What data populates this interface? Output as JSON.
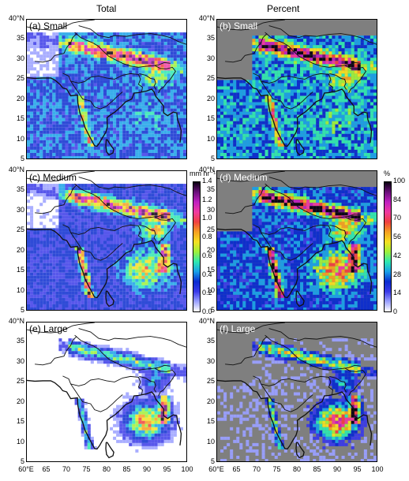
{
  "columns": {
    "total": "Total",
    "percent": "Percent"
  },
  "panels": {
    "a": {
      "label": "(a) Small"
    },
    "b": {
      "label": "(b) Small"
    },
    "c": {
      "label": "(c) Medium"
    },
    "d": {
      "label": "(d) Medium"
    },
    "e": {
      "label": "(e) Large"
    },
    "f": {
      "label": "(f) Large"
    }
  },
  "lat_ticks": [
    "40°N",
    "35",
    "30",
    "25",
    "20",
    "15",
    "10",
    "5"
  ],
  "lon_ticks": [
    "60°E",
    "65",
    "70",
    "75",
    "80",
    "85",
    "90",
    "95",
    "100"
  ],
  "colorbar_total": {
    "unit": "mm hr⁻¹",
    "ticks": [
      "1.4",
      "1.2",
      "1.0",
      "0.8",
      "0.6",
      "0.4",
      "0.2",
      "0.0"
    ],
    "colors": [
      "#ffffff",
      "#9aa0ff",
      "#3a3ae8",
      "#0a2bd0",
      "#18a0e8",
      "#2ee8b0",
      "#9ef03a",
      "#f5e020",
      "#f5a020",
      "#f04040",
      "#f03aa0",
      "#c020c0",
      "#6a107a",
      "#0a0010"
    ]
  },
  "colorbar_percent": {
    "unit": "%",
    "ticks": [
      "100",
      "84",
      "70",
      "56",
      "42",
      "28",
      "14",
      "0"
    ],
    "colors": [
      "#ffffff",
      "#9aa0ff",
      "#3a3ae8",
      "#0a2bd0",
      "#18a0e8",
      "#2ee8b0",
      "#9ef03a",
      "#f5e020",
      "#f5a020",
      "#f04040",
      "#f03aa0",
      "#c020c0",
      "#6a107a",
      "#0a0010"
    ]
  },
  "map_colors": {
    "percent_background": "#7f7f7f",
    "coastline": "#111111"
  }
}
